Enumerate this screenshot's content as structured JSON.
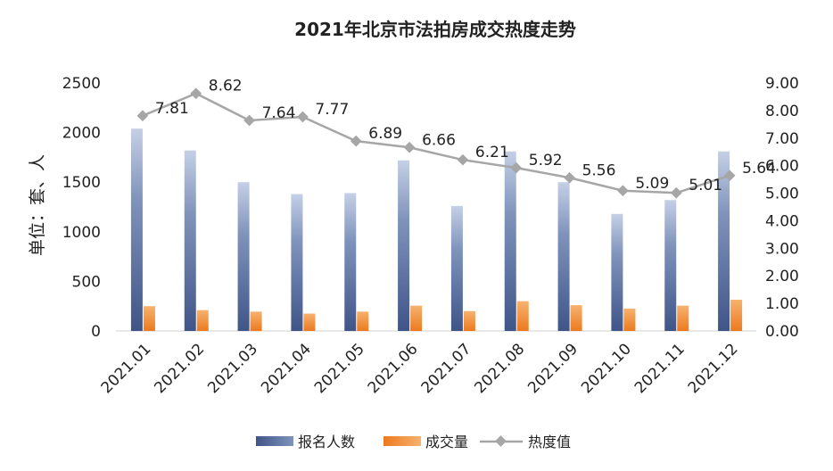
{
  "chart_data": {
    "type": "bar",
    "title": "2021年北京市法拍房成交热度走势",
    "ylabel": "单位：套、人",
    "categories": [
      "2021.01",
      "2021.02",
      "2021.03",
      "2021.04",
      "2021.05",
      "2021.06",
      "2021.07",
      "2021.08",
      "2021.09",
      "2021.10",
      "2021.11",
      "2021.12"
    ],
    "series": [
      {
        "name": "报名人数",
        "type": "bar",
        "axis": "left",
        "color": "#4a5f8e",
        "values": [
          2040,
          1820,
          1500,
          1380,
          1390,
          1720,
          1260,
          1810,
          1500,
          1180,
          1320,
          1810
        ]
      },
      {
        "name": "成交量",
        "type": "bar",
        "axis": "left",
        "color": "#f08a2c",
        "values": [
          250,
          210,
          195,
          175,
          195,
          255,
          200,
          300,
          260,
          225,
          255,
          315
        ]
      },
      {
        "name": "热度值",
        "type": "line",
        "axis": "right",
        "color": "#a6a6a6",
        "values": [
          7.81,
          8.62,
          7.64,
          7.77,
          6.89,
          6.66,
          6.21,
          5.92,
          5.56,
          5.09,
          5.01,
          5.64
        ]
      }
    ],
    "data_labels": [
      "7.81",
      "8.62",
      "7.64",
      "7.77",
      "6.89",
      "6.66",
      "6.21",
      "5.92",
      "5.56",
      "5.09",
      "5.01",
      "5.64"
    ],
    "ylim_left": [
      0,
      2500
    ],
    "yticks_left": [
      "0",
      "500",
      "1000",
      "1500",
      "2000",
      "2500"
    ],
    "ylim_right": [
      0,
      9
    ],
    "yticks_right": [
      "0.00",
      "1.00",
      "2.00",
      "3.00",
      "4.00",
      "5.00",
      "6.00",
      "7.00",
      "8.00",
      "9.00"
    ],
    "grid": false,
    "legend_position": "bottom"
  }
}
